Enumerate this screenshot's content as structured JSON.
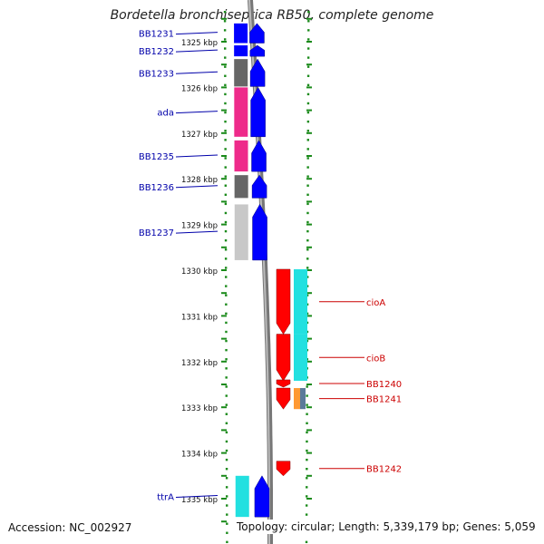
{
  "title": "Bordetella bronchiseptica RB50, complete genome",
  "footer": {
    "accession": "Accession: NC_002927",
    "summary": "Topology: circular; Length: 5,339,179 bp; Genes: 5,059"
  },
  "colors": {
    "forward_label": "#0000aa",
    "reverse_label": "#cc0000",
    "backbone": "#888888",
    "ruler_ticks": "#1a8a1a",
    "forward_cds": "#0000ff",
    "reverse_cds": "#ff0000",
    "magenta": "#ee2a8a",
    "dark_gray": "#666666",
    "light_gray": "#c8c8c8",
    "cyan": "#22e0e0",
    "orange": "#ff9933"
  },
  "scale": {
    "unit": "kbp",
    "ticks": [
      1325,
      1326,
      1327,
      1328,
      1329,
      1330,
      1331,
      1332,
      1333,
      1334,
      1335
    ]
  },
  "forward_features": [
    {
      "label": "BB1231",
      "start": 1324.6,
      "end": 1325.03,
      "class_color": "blue"
    },
    {
      "label": "BB1232",
      "start": 1325.08,
      "end": 1325.32,
      "class_color": "blue"
    },
    {
      "label": "BB1233",
      "start": 1325.38,
      "end": 1325.98,
      "class_color": "dark_gray"
    },
    {
      "label": "ada",
      "start": 1326.0,
      "end": 1327.08,
      "class_color": "magenta"
    },
    {
      "label": "BB1235",
      "start": 1327.16,
      "end": 1327.84,
      "class_color": "magenta"
    },
    {
      "label": "BB1236",
      "start": 1327.92,
      "end": 1328.42,
      "class_color": "dark_gray"
    },
    {
      "label": "BB1237",
      "start": 1328.56,
      "end": 1329.78,
      "class_color": "light_gray"
    },
    {
      "label": "ttrA",
      "start": 1334.5,
      "end": 1335.4,
      "class_color": "cyan"
    }
  ],
  "reverse_features": [
    {
      "label": "cioA",
      "start": 1329.98,
      "end": 1331.4,
      "class_color": "cyan"
    },
    {
      "label": "cioB",
      "start": 1331.4,
      "end": 1332.42,
      "class_color": "cyan"
    },
    {
      "label": "BB1240",
      "start": 1332.4,
      "end": 1332.56,
      "class_color": "red"
    },
    {
      "label": "BB1241",
      "start": 1332.58,
      "end": 1333.04,
      "class_color": "orange"
    },
    {
      "label": "BB1242",
      "start": 1334.18,
      "end": 1334.5,
      "class_color": "red"
    }
  ]
}
